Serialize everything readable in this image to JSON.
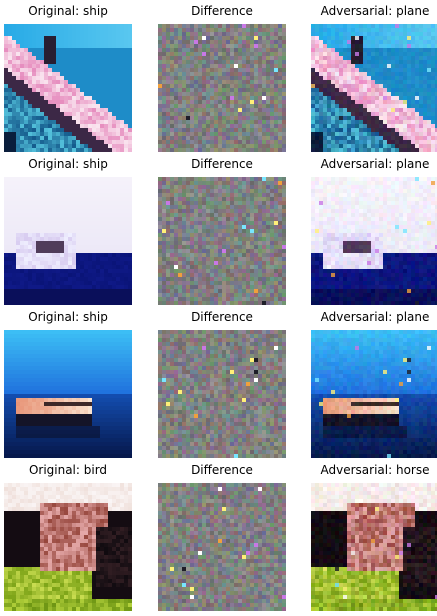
{
  "rows": [
    {
      "original_title": "Original: ship",
      "difference_title": "Difference",
      "adversarial_title": "Adversarial: plane",
      "scene": "ship-diagonal"
    },
    {
      "original_title": "Original: ship",
      "difference_title": "Difference",
      "adversarial_title": "Adversarial: plane",
      "scene": "ship-white-sky"
    },
    {
      "original_title": "Original: ship",
      "difference_title": "Difference",
      "adversarial_title": "Adversarial: plane",
      "scene": "ship-blue-sea"
    },
    {
      "original_title": "Original: bird",
      "difference_title": "Difference",
      "adversarial_title": "Adversarial: horse",
      "scene": "bird-grass"
    }
  ]
}
